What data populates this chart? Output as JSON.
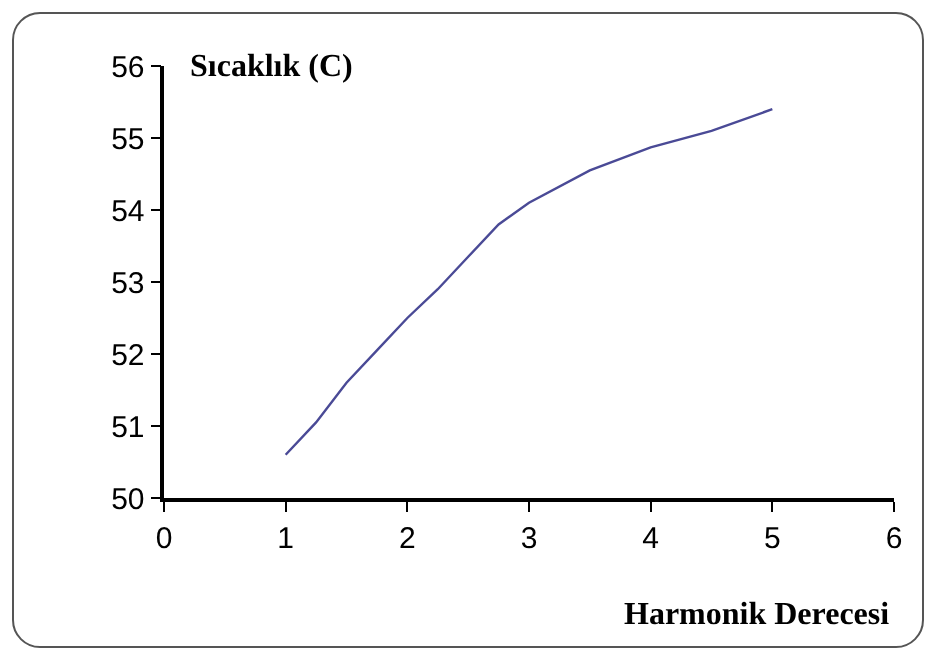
{
  "chart_data": {
    "type": "line",
    "xlabel": "Harmonik Derecesi",
    "ylabel": "Sıcaklık (C)",
    "x": [
      1,
      1.25,
      1.5,
      1.75,
      2,
      2.25,
      2.5,
      2.75,
      3,
      3.5,
      4,
      4.5,
      5
    ],
    "series": [
      {
        "color": "#4a4a96",
        "values": [
          50.6,
          51.05,
          51.6,
          52.05,
          52.5,
          52.9,
          53.35,
          53.8,
          54.1,
          54.55,
          54.87,
          55.1,
          55.4
        ]
      }
    ],
    "xlim": [
      0,
      6
    ],
    "xticks": [
      0,
      1,
      2,
      3,
      4,
      5,
      6
    ],
    "ylim": [
      50,
      56
    ],
    "yticks": [
      50,
      51,
      52,
      53,
      54,
      55,
      56
    ],
    "grid": false,
    "marker": "none",
    "line_style": "solid"
  }
}
